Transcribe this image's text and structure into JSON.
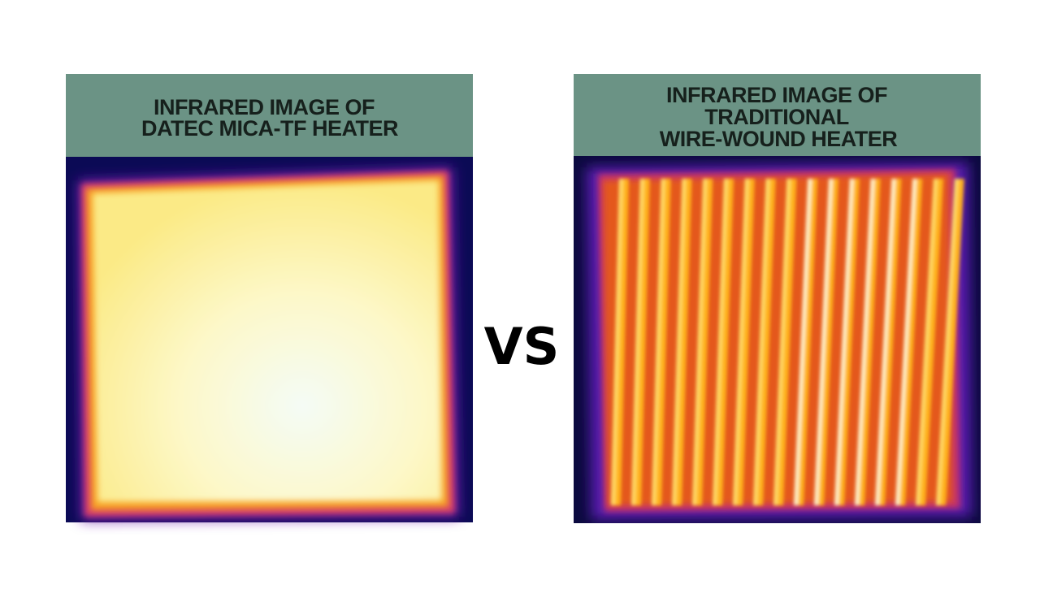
{
  "left": {
    "title_lines": [
      "INFRARED IMAGE OF",
      "DATEC MICA-TF HEATER"
    ]
  },
  "right": {
    "title_lines": [
      "INFRARED IMAGE OF",
      "TRADITIONAL",
      "WIRE-WOUND HEATER"
    ]
  },
  "separator": "VS"
}
